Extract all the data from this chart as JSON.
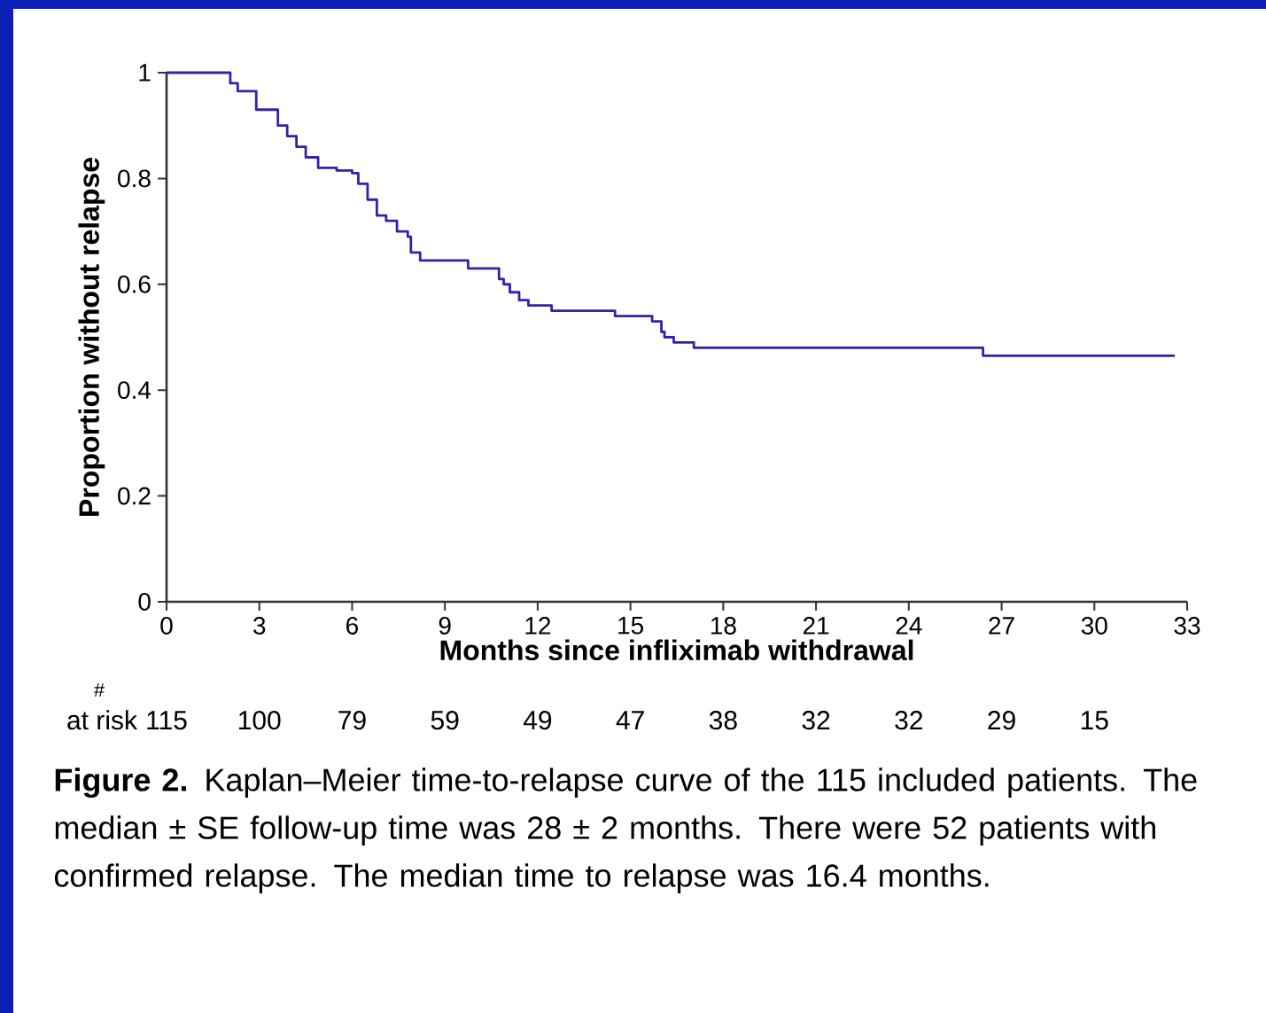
{
  "chart_data": {
    "type": "step",
    "xlabel": "Months since infliximab withdrawal",
    "ylabel": "Proportion without relapse",
    "x": [
      0,
      2.06,
      2.3,
      2.9,
      3.6,
      3.9,
      4.2,
      4.5,
      4.9,
      5.5,
      6.0,
      6.2,
      6.5,
      6.8,
      7.1,
      7.45,
      7.8,
      7.9,
      8.2,
      9.75,
      10.75,
      10.9,
      11.1,
      11.4,
      11.7,
      12.45,
      14.5,
      15.7,
      16.0,
      16.1,
      16.4,
      17.05,
      26.4,
      32.6
    ],
    "series": [
      {
        "color": "#3322aa",
        "values": [
          1,
          0.98,
          0.965,
          0.93,
          0.9,
          0.88,
          0.86,
          0.84,
          0.82,
          0.815,
          0.81,
          0.79,
          0.76,
          0.73,
          0.72,
          0.7,
          0.69,
          0.66,
          0.645,
          0.63,
          0.61,
          0.6,
          0.585,
          0.57,
          0.56,
          0.55,
          0.54,
          0.53,
          0.51,
          0.5,
          0.49,
          0.48,
          0.465,
          0.465
        ]
      }
    ],
    "xlim": [
      0,
      33
    ],
    "ylim": [
      0,
      1
    ],
    "xticks": [
      0,
      3,
      6,
      9,
      12,
      15,
      18,
      21,
      24,
      27,
      30,
      33
    ],
    "yticks": [
      0,
      {
        "value": 0.2,
        "label": "0.2"
      },
      {
        "value": 0.4,
        "label": "0.4"
      },
      {
        "value": 0.6,
        "label": "0.6"
      },
      {
        "value": 0.8,
        "label": "0.8"
      },
      1
    ],
    "annotations": [
      "#",
      "at risk",
      "115",
      "100",
      "79",
      "59",
      "49",
      "47",
      "38",
      "32",
      "32",
      "29",
      "15",
      "**Figure 2.** Kaplan–Meier time-to-relapse curve of the 115 included patients. The median ± SE follow-up time was 28 ± 2 months. There were 52 patients with confirmed relapse. The median time to relapse was 16.4 months."
    ]
  }
}
